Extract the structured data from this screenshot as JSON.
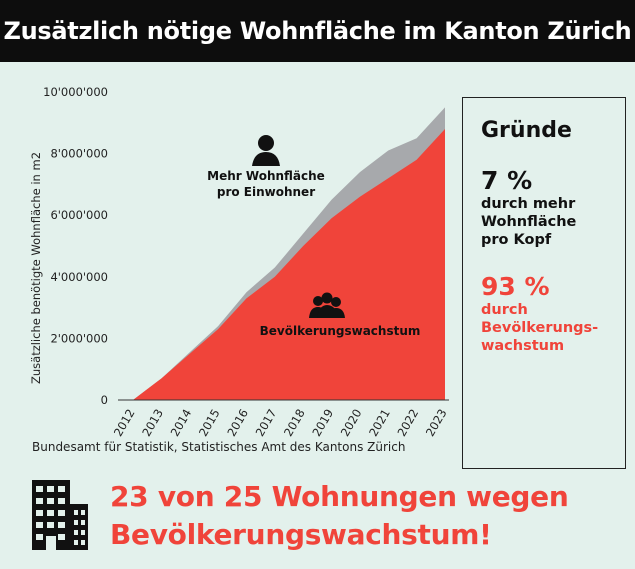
{
  "title": "Zusätzlich nötige Wohnfläche im Kanton Zürich",
  "chart_data": {
    "type": "area",
    "x": [
      2012,
      2013,
      2014,
      2015,
      2016,
      2017,
      2018,
      2019,
      2020,
      2021,
      2022,
      2023
    ],
    "ylabel": "Zusätzliche benötigte Wohnfläche in m2",
    "ylim": [
      0,
      10000000
    ],
    "yticks": [
      0,
      2000000,
      4000000,
      6000000,
      8000000,
      10000000
    ],
    "ytick_labels": [
      "0",
      "2'000'000",
      "4'000'000",
      "6'000'000",
      "8'000'000",
      "10'000'000"
    ],
    "grid": false,
    "colors": {
      "population": "#f0443a",
      "per_capita": "#a7a9ac"
    },
    "series": [
      {
        "name": "Bevölkerungswachstum",
        "values": [
          0,
          700000,
          1500000,
          2300000,
          3300000,
          4000000,
          5000000,
          5900000,
          6600000,
          7200000,
          7800000,
          8800000
        ]
      },
      {
        "name": "Mehr Wohnfläche pro Einwohner",
        "values": [
          0,
          0,
          50000,
          100000,
          200000,
          300000,
          400000,
          600000,
          800000,
          900000,
          700000,
          700000
        ]
      }
    ],
    "annotations": [
      {
        "label_lines": [
          "Mehr Wohnfläche",
          "pro Einwohner"
        ],
        "icon": "person-icon"
      },
      {
        "label_lines": [
          "Bevölkerungswachstum"
        ],
        "icon": "people-group-icon"
      }
    ]
  },
  "reasons": {
    "heading": "Gründe",
    "items": [
      {
        "percent": "7 %",
        "lines": [
          "durch mehr",
          "Wohnfläche",
          "pro Kopf"
        ],
        "color": "#111111"
      },
      {
        "percent": "93 %",
        "lines": [
          "durch",
          "Bevölkerungs-",
          "wachstum"
        ],
        "color": "#f0443a"
      }
    ]
  },
  "source": "Bundesamt für Statistik, Statistisches Amt des Kantons Zürich",
  "headline": {
    "line1": "23 von 25 Wohnungen wegen",
    "line2": "Bevölkerungswachstum!"
  }
}
